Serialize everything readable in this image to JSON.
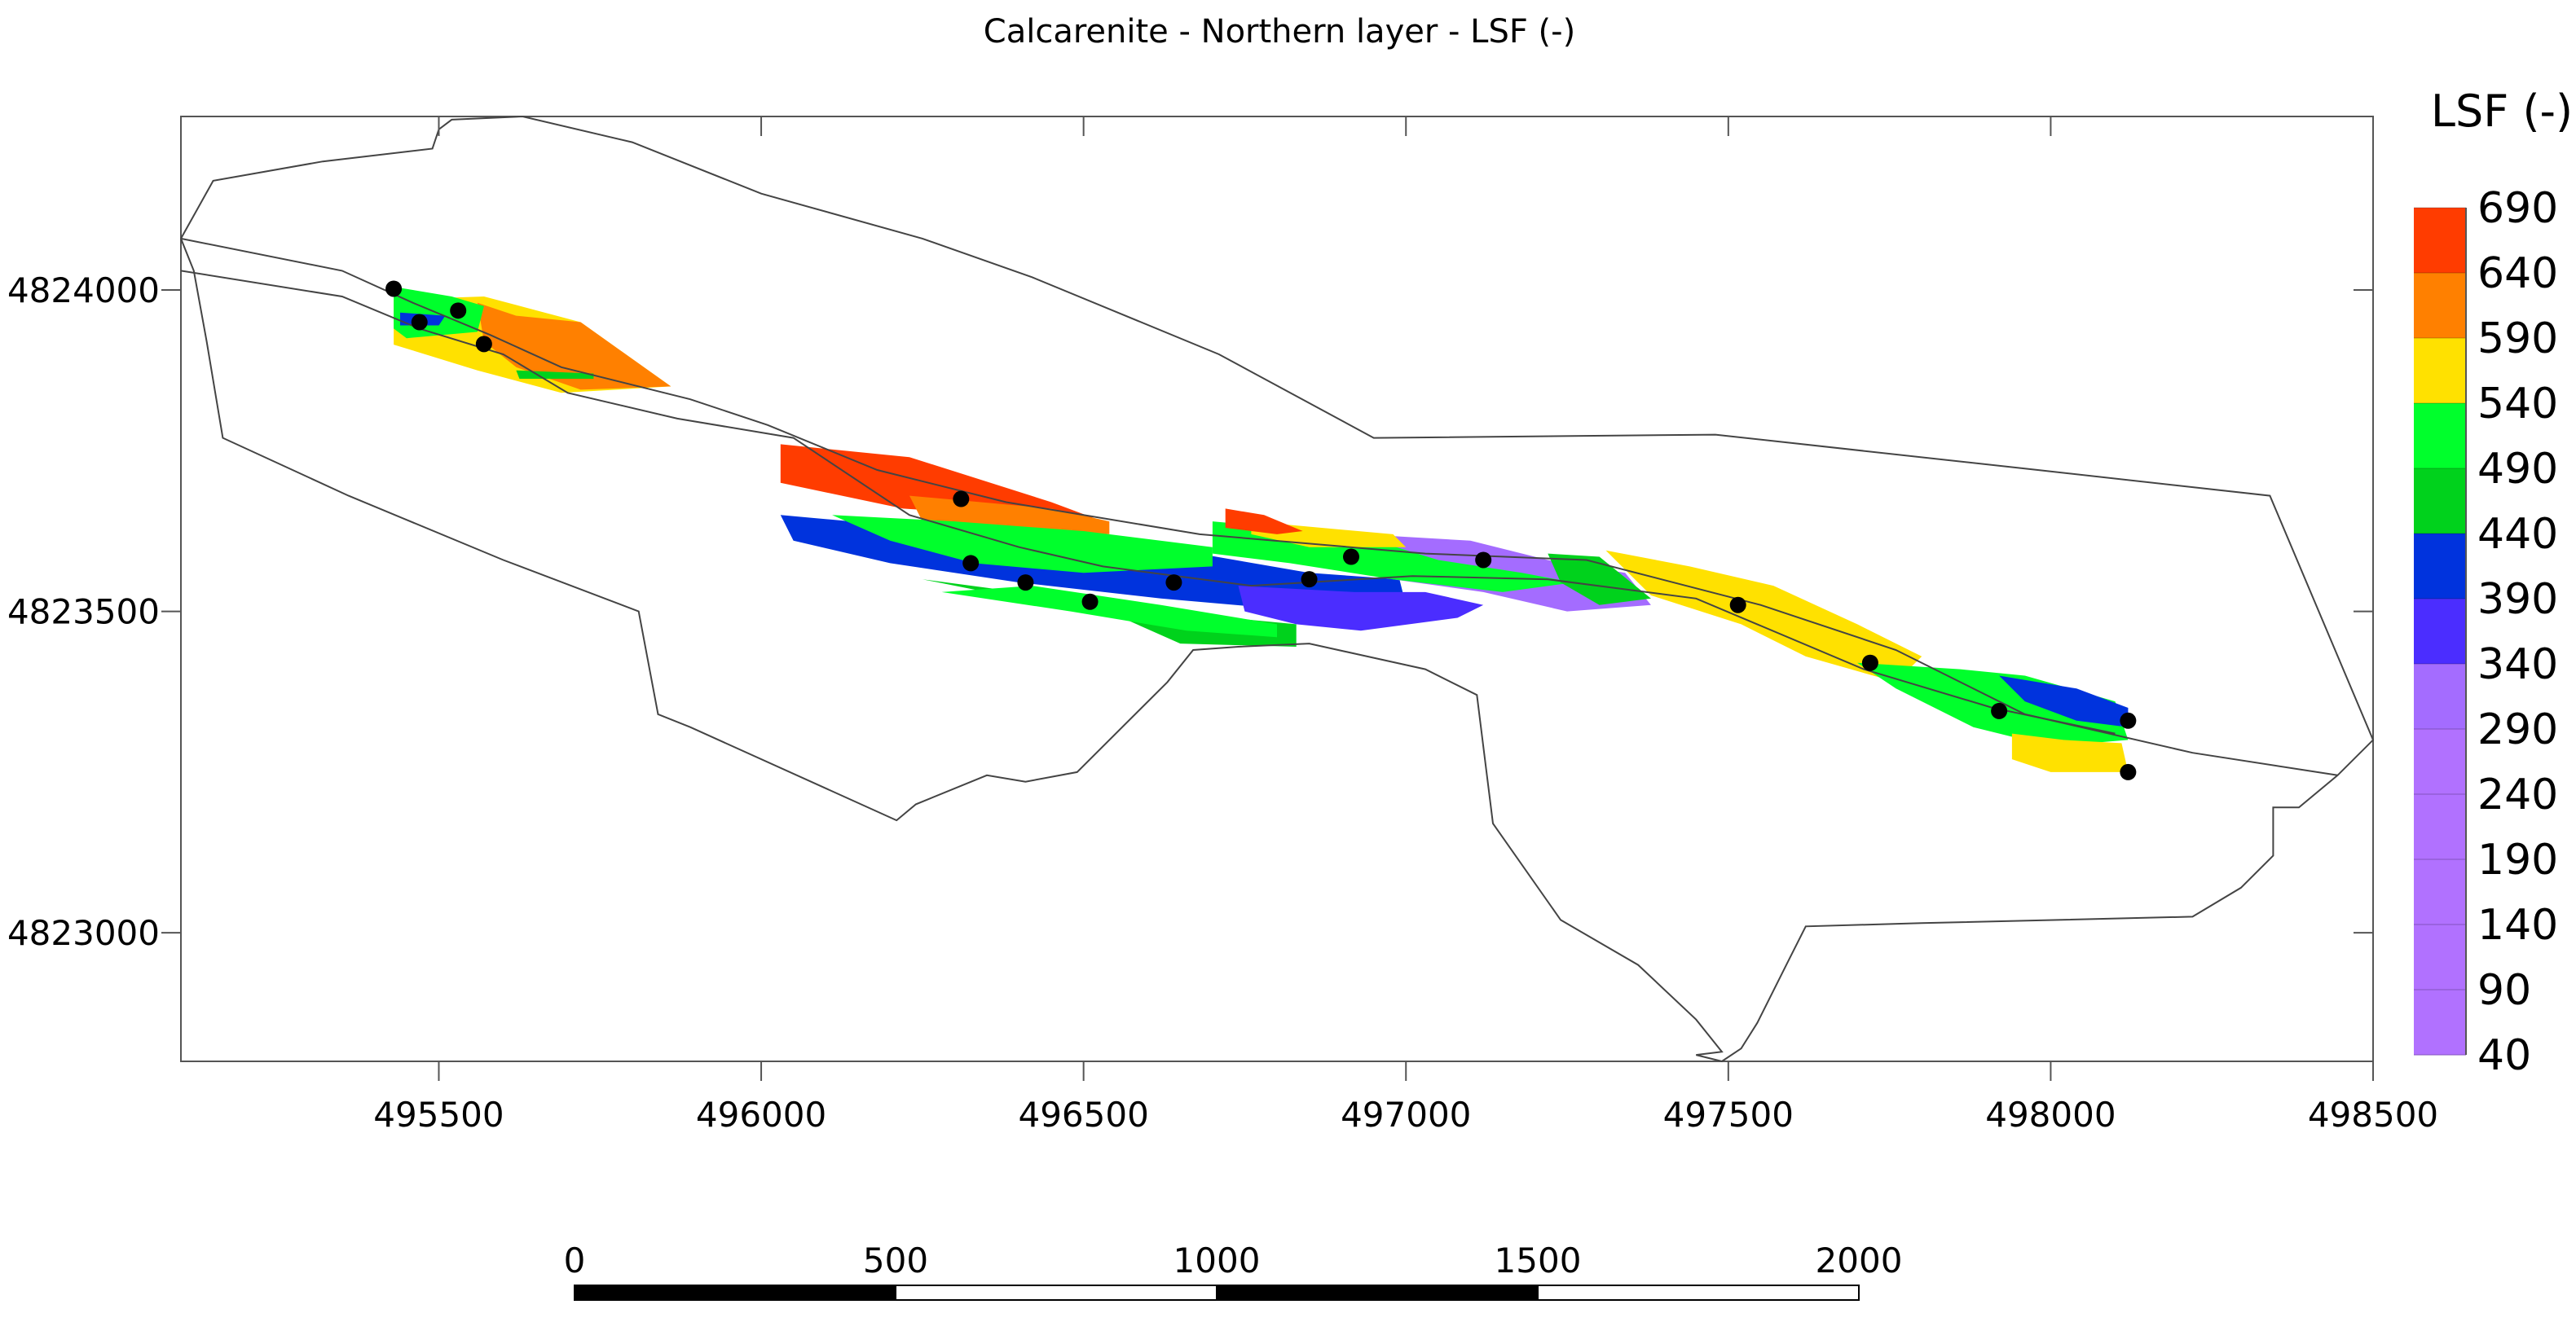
{
  "title": "Calcarenite - Northern layer - LSF (-)",
  "map": {
    "x_range": [
      495100,
      498500
    ],
    "y_range": [
      4822800,
      4824270
    ],
    "x_ticks": [
      495500,
      496000,
      496500,
      497000,
      497500,
      498000,
      498500
    ],
    "x_tick_labels": [
      "495500",
      "496000",
      "496500",
      "497000",
      "497500",
      "498000",
      "498500"
    ],
    "y_ticks": [
      4824000,
      4823500,
      4823000
    ],
    "y_tick_labels": [
      "4824000",
      "4823500",
      "4823000"
    ],
    "boundary": [
      [
        495100,
        4824080
      ],
      [
        495150,
        4824170
      ],
      [
        495320,
        4824200
      ],
      [
        495490,
        4824220
      ],
      [
        495500,
        4824250
      ],
      [
        495520,
        4824265
      ],
      [
        495630,
        4824270
      ],
      [
        495800,
        4824230
      ],
      [
        496000,
        4824150
      ],
      [
        496250,
        4824080
      ],
      [
        496420,
        4824020
      ],
      [
        496710,
        4823900
      ],
      [
        496950,
        4823770
      ],
      [
        497480,
        4823775
      ],
      [
        497980,
        4823720
      ],
      [
        498340,
        4823680
      ],
      [
        498420,
        4823490
      ],
      [
        498500,
        4823300
      ],
      [
        498445,
        4823245
      ],
      [
        498385,
        4823195
      ],
      [
        498345,
        4823195
      ],
      [
        498345,
        4823120
      ],
      [
        498295,
        4823070
      ],
      [
        498220,
        4823025
      ],
      [
        497800,
        4823015
      ],
      [
        497620,
        4823010
      ],
      [
        497590,
        4822950
      ],
      [
        497545,
        4822860
      ],
      [
        497520,
        4822820
      ],
      [
        497490,
        4822800
      ],
      [
        497450,
        4822810
      ],
      [
        497490,
        4822815
      ],
      [
        497450,
        4822865
      ],
      [
        497360,
        4822950
      ],
      [
        497240,
        4823020
      ],
      [
        497135,
        4823170
      ],
      [
        497125,
        4823250
      ],
      [
        497110,
        4823370
      ],
      [
        497030,
        4823410
      ],
      [
        496940,
        4823430
      ],
      [
        496850,
        4823450
      ],
      [
        496740,
        4823445
      ],
      [
        496670,
        4823440
      ],
      [
        496630,
        4823390
      ],
      [
        496490,
        4823250
      ],
      [
        496410,
        4823235
      ],
      [
        496350,
        4823245
      ],
      [
        496240,
        4823200
      ],
      [
        496210,
        4823175
      ],
      [
        495890,
        4823320
      ],
      [
        495840,
        4823340
      ],
      [
        495810,
        4823500
      ],
      [
        495600,
        4823580
      ],
      [
        495360,
        4823680
      ],
      [
        495165,
        4823770
      ],
      [
        495140,
        4823920
      ],
      [
        495120,
        4824030
      ],
      [
        495100,
        4824080
      ]
    ],
    "trace_upper": [
      [
        495100,
        4824080
      ],
      [
        495350,
        4824030
      ],
      [
        495460,
        4823980
      ],
      [
        495580,
        4823930
      ],
      [
        495690,
        4823880
      ],
      [
        495890,
        4823830
      ],
      [
        496010,
        4823790
      ],
      [
        496180,
        4823720
      ],
      [
        496380,
        4823670
      ],
      [
        496680,
        4823620
      ],
      [
        497030,
        4823590
      ],
      [
        497280,
        4823580
      ],
      [
        497550,
        4823510
      ],
      [
        497760,
        4823440
      ],
      [
        497960,
        4823340
      ],
      [
        498220,
        4823280
      ],
      [
        498445,
        4823245
      ]
    ],
    "trace_lower": [
      [
        495100,
        4824030
      ],
      [
        495350,
        4823990
      ],
      [
        495470,
        4823940
      ],
      [
        495600,
        4823900
      ],
      [
        495700,
        4823840
      ],
      [
        495870,
        4823800
      ],
      [
        496050,
        4823770
      ],
      [
        496230,
        4823650
      ],
      [
        496400,
        4823600
      ],
      [
        496530,
        4823570
      ],
      [
        496760,
        4823540
      ],
      [
        497010,
        4823555
      ],
      [
        497220,
        4823550
      ],
      [
        497450,
        4823520
      ],
      [
        497710,
        4823410
      ],
      [
        497910,
        4823350
      ],
      [
        498100,
        4823310
      ]
    ],
    "points": [
      [
        495430,
        4824002
      ],
      [
        495470,
        4823950
      ],
      [
        495530,
        4823968
      ],
      [
        495570,
        4823916
      ],
      [
        496310,
        4823675
      ],
      [
        496325,
        4823575
      ],
      [
        496410,
        4823545
      ],
      [
        496510,
        4823515
      ],
      [
        496640,
        4823545
      ],
      [
        496850,
        4823550
      ],
      [
        496915,
        4823585
      ],
      [
        497120,
        4823580
      ],
      [
        497515,
        4823510
      ],
      [
        497720,
        4823420
      ],
      [
        497920,
        4823345
      ],
      [
        498120,
        4823330
      ],
      [
        498120,
        4823250
      ]
    ],
    "lsf_patches": [
      {
        "level": "540-590",
        "poly": [
          [
            495430,
            4823985
          ],
          [
            495570,
            4823990
          ],
          [
            495720,
            4823950
          ],
          [
            495860,
            4823850
          ],
          [
            495690,
            4823840
          ],
          [
            495560,
            4823875
          ],
          [
            495430,
            4823915
          ]
        ]
      },
      {
        "level": "590-640",
        "poly": [
          [
            495560,
            4823980
          ],
          [
            495620,
            4823960
          ],
          [
            495720,
            4823950
          ],
          [
            495860,
            4823850
          ],
          [
            495720,
            4823845
          ],
          [
            495620,
            4823880
          ],
          [
            495570,
            4823920
          ]
        ]
      },
      {
        "level": "490-540",
        "poly": [
          [
            495430,
            4824005
          ],
          [
            495520,
            4823990
          ],
          [
            495570,
            4823975
          ],
          [
            495560,
            4823935
          ],
          [
            495450,
            4823925
          ],
          [
            495430,
            4823940
          ]
        ]
      },
      {
        "level": "390-440",
        "poly": [
          [
            495440,
            4823965
          ],
          [
            495510,
            4823960
          ],
          [
            495500,
            4823945
          ],
          [
            495440,
            4823945
          ]
        ]
      },
      {
        "level": "440-490",
        "poly": [
          [
            495620,
            4823875
          ],
          [
            495740,
            4823870
          ],
          [
            495740,
            4823862
          ],
          [
            495625,
            4823862
          ]
        ]
      },
      {
        "level": "640-690",
        "poly": [
          [
            496030,
            4823760
          ],
          [
            496230,
            4823740
          ],
          [
            496450,
            4823670
          ],
          [
            496530,
            4823640
          ],
          [
            496220,
            4823660
          ],
          [
            496030,
            4823700
          ]
        ]
      },
      {
        "level": "590-640",
        "poly": [
          [
            496230,
            4823680
          ],
          [
            496450,
            4823660
          ],
          [
            496540,
            4823640
          ],
          [
            496540,
            4823620
          ],
          [
            496250,
            4823640
          ]
        ]
      },
      {
        "level": "390-440",
        "poly": [
          [
            496030,
            4823650
          ],
          [
            496250,
            4823630
          ],
          [
            496500,
            4823620
          ],
          [
            496620,
            4823600
          ],
          [
            496850,
            4823560
          ],
          [
            496990,
            4823550
          ],
          [
            497000,
            4823510
          ],
          [
            496850,
            4823500
          ],
          [
            496620,
            4823520
          ],
          [
            496400,
            4823545
          ],
          [
            496200,
            4823575
          ],
          [
            496050,
            4823610
          ]
        ]
      },
      {
        "level": "490-540",
        "poly": [
          [
            496110,
            4823650
          ],
          [
            496300,
            4823640
          ],
          [
            496500,
            4823625
          ],
          [
            496700,
            4823600
          ],
          [
            496700,
            4823570
          ],
          [
            496500,
            4823560
          ],
          [
            496330,
            4823575
          ],
          [
            496200,
            4823610
          ]
        ]
      },
      {
        "level": "440-490",
        "poly": [
          [
            496250,
            4823550
          ],
          [
            496400,
            4823520
          ],
          [
            496560,
            4823490
          ],
          [
            496650,
            4823450
          ],
          [
            496830,
            4823445
          ],
          [
            496830,
            4823480
          ],
          [
            496620,
            4823500
          ],
          [
            496400,
            4823530
          ]
        ]
      },
      {
        "level": "490-540",
        "poly": [
          [
            496280,
            4823530
          ],
          [
            496480,
            4823500
          ],
          [
            496660,
            4823470
          ],
          [
            496800,
            4823460
          ],
          [
            496800,
            4823480
          ],
          [
            496620,
            4823510
          ],
          [
            496420,
            4823540
          ]
        ]
      },
      {
        "level": "340-390",
        "poly": [
          [
            496740,
            4823540
          ],
          [
            496920,
            4823530
          ],
          [
            497030,
            4823530
          ],
          [
            497120,
            4823510
          ],
          [
            497080,
            4823490
          ],
          [
            496930,
            4823470
          ],
          [
            496830,
            4823480
          ],
          [
            496750,
            4823500
          ]
        ]
      },
      {
        "level": "290-340",
        "poly": [
          [
            496930,
            4823620
          ],
          [
            497100,
            4823610
          ],
          [
            497220,
            4823580
          ],
          [
            497340,
            4823560
          ],
          [
            497380,
            4823510
          ],
          [
            497250,
            4823500
          ],
          [
            497120,
            4823530
          ],
          [
            496980,
            4823550
          ]
        ]
      },
      {
        "level": "490-540",
        "poly": [
          [
            496700,
            4823640
          ],
          [
            496920,
            4823620
          ],
          [
            497050,
            4823580
          ],
          [
            497180,
            4823560
          ],
          [
            497260,
            4823545
          ],
          [
            497150,
            4823530
          ],
          [
            496980,
            4823550
          ],
          [
            496820,
            4823575
          ],
          [
            496700,
            4823590
          ]
        ]
      },
      {
        "level": "540-590",
        "poly": [
          [
            496760,
            4823640
          ],
          [
            496980,
            4823620
          ],
          [
            497000,
            4823600
          ],
          [
            496850,
            4823600
          ],
          [
            496760,
            4823620
          ]
        ]
      },
      {
        "level": "640-690",
        "poly": [
          [
            496720,
            4823660
          ],
          [
            496780,
            4823650
          ],
          [
            496840,
            4823625
          ],
          [
            496800,
            4823620
          ],
          [
            496720,
            4823630
          ]
        ]
      },
      {
        "level": "440-490",
        "poly": [
          [
            497220,
            4823590
          ],
          [
            497300,
            4823585
          ],
          [
            497380,
            4823520
          ],
          [
            497300,
            4823510
          ],
          [
            497240,
            4823545
          ]
        ]
      },
      {
        "level": "540-590",
        "poly": [
          [
            497310,
            4823595
          ],
          [
            497440,
            4823570
          ],
          [
            497570,
            4823540
          ],
          [
            497700,
            4823480
          ],
          [
            497800,
            4823430
          ],
          [
            497760,
            4823390
          ],
          [
            497620,
            4823430
          ],
          [
            497520,
            4823480
          ],
          [
            497380,
            4823525
          ]
        ]
      },
      {
        "level": "490-540",
        "poly": [
          [
            497700,
            4823420
          ],
          [
            497860,
            4823410
          ],
          [
            497960,
            4823400
          ],
          [
            498100,
            4823360
          ],
          [
            498120,
            4823300
          ],
          [
            498000,
            4823290
          ],
          [
            497880,
            4823320
          ],
          [
            497760,
            4823380
          ]
        ]
      },
      {
        "level": "390-440",
        "poly": [
          [
            497920,
            4823400
          ],
          [
            498040,
            4823380
          ],
          [
            498120,
            4823350
          ],
          [
            498120,
            4823320
          ],
          [
            498040,
            4823330
          ],
          [
            497960,
            4823360
          ]
        ]
      },
      {
        "level": "540-590",
        "poly": [
          [
            497940,
            4823310
          ],
          [
            498020,
            4823300
          ],
          [
            498110,
            4823295
          ],
          [
            498120,
            4823250
          ],
          [
            498000,
            4823250
          ],
          [
            497940,
            4823270
          ]
        ]
      }
    ]
  },
  "colorbar": {
    "title": "LSF (-)",
    "labels": [
      "690",
      "640",
      "590",
      "540",
      "490",
      "440",
      "390",
      "340",
      "290",
      "240",
      "190",
      "140",
      "90",
      "40"
    ],
    "colors": {
      "640-690": "#ff3c00",
      "590-640": "#ff8000",
      "540-590": "#ffe100",
      "490-540": "#00ff2c",
      "440-490": "#00d21c",
      "390-440": "#0033dd",
      "340-390": "#4b2dff",
      "290-340": "#a46cff",
      "40-290": "#b171ff"
    }
  },
  "scalebar": {
    "labels": [
      "0",
      "500",
      "1000",
      "1500",
      "2000"
    ]
  }
}
